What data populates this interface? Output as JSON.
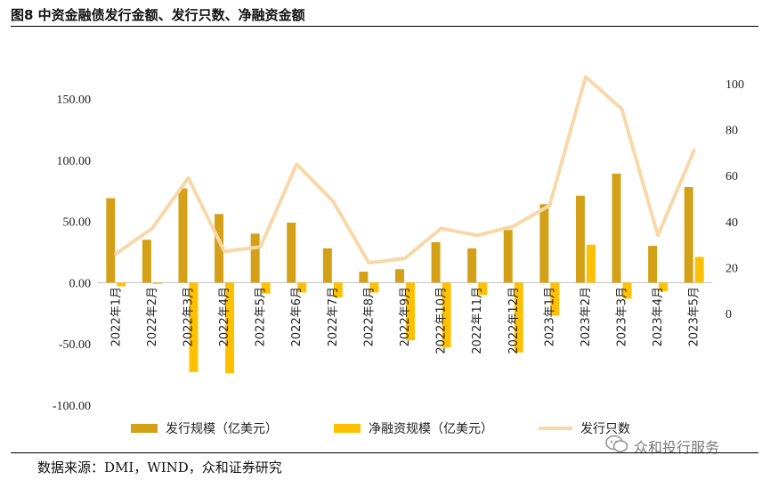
{
  "header": {
    "title": "图8 中资金融债发行金额、发行只数、净融资金额"
  },
  "footer": {
    "source": "数据来源：DMI，WIND，众和证券研究"
  },
  "watermark": {
    "text": "众和投行服务"
  },
  "colors": {
    "issuance": "#D4A017",
    "net": "#FFC000",
    "count": "#F8D8A8"
  },
  "chart_data": {
    "type": "bar",
    "categories": [
      "2022年1月",
      "2022年2月",
      "2022年3月",
      "2022年4月",
      "2022年5月",
      "2022年6月",
      "2022年7月",
      "2022年8月",
      "2022年9月",
      "2022年10月",
      "2022年11月",
      "2022年12月",
      "2023年1月",
      "2023年2月",
      "2023年3月",
      "2023年4月",
      "2023年5月"
    ],
    "series": [
      {
        "name": "发行规模（亿美元）",
        "type": "bar",
        "axis": "left",
        "values": [
          69,
          35,
          77,
          56,
          40,
          49,
          28,
          9,
          11,
          33,
          28,
          43,
          64,
          71,
          89,
          30,
          78
        ]
      },
      {
        "name": "净融资规模（亿美元）",
        "type": "bar",
        "axis": "left",
        "values": [
          -3,
          -1,
          -73,
          -74,
          -9,
          -8,
          -12,
          -8,
          -47,
          -53,
          -10,
          -57,
          -27,
          31,
          -13,
          -7,
          21
        ]
      },
      {
        "name": "发行只数",
        "type": "line",
        "axis": "right",
        "values": [
          26,
          37,
          59,
          27,
          29,
          65,
          49,
          22,
          24,
          37,
          34,
          38,
          47,
          103,
          89,
          34,
          71
        ]
      }
    ],
    "y_left": {
      "ticks": [
        "150.00",
        "100.00",
        "50.00",
        "0.00",
        "-50.00",
        "-100.00"
      ],
      "range": [
        -100,
        150
      ]
    },
    "y_right": {
      "ticks": [
        "100",
        "80",
        "60",
        "40",
        "20",
        "0"
      ],
      "range": [
        0,
        100
      ]
    },
    "legend_position": "bottom"
  }
}
